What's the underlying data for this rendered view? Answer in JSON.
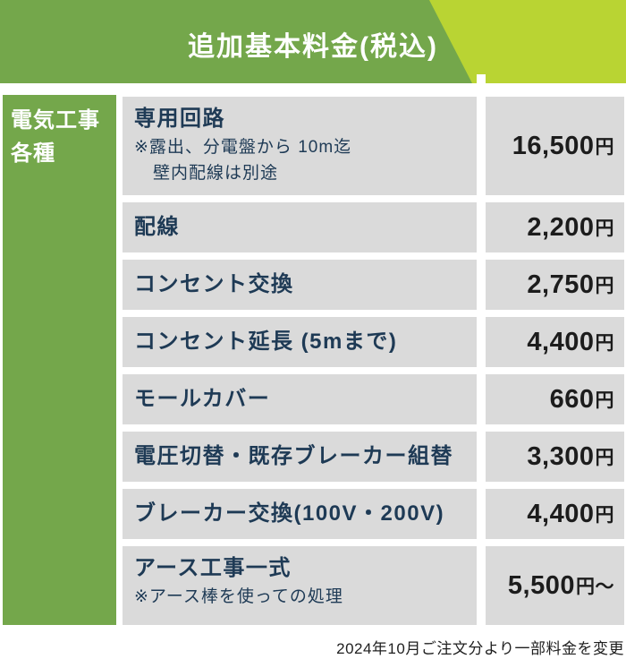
{
  "header": {
    "title": "追加基本料金(税込)"
  },
  "sidebar": {
    "label_line1": "電気工事",
    "label_line2": "各種"
  },
  "table": {
    "rows": [
      {
        "item": "専用回路",
        "notes": [
          "※露出、分電盤から 10m迄",
          "壁内配線は別途"
        ],
        "price": "16,500",
        "unit": "円"
      },
      {
        "item": "配線",
        "price": "2,200",
        "unit": "円"
      },
      {
        "item": "コンセント交換",
        "price": "2,750",
        "unit": "円"
      },
      {
        "item": "コンセント延長 (5mまで)",
        "price": "4,400",
        "unit": "円"
      },
      {
        "item": "モールカバー",
        "price": "660",
        "unit": "円"
      },
      {
        "item": "電圧切替・既存ブレーカー組替",
        "price": "3,300",
        "unit": "円"
      },
      {
        "item": "ブレーカー交換(100V・200V)",
        "price": "4,400",
        "unit": "円"
      },
      {
        "item": "アース工事一式",
        "notes": [
          "※アース棒を使っての処理"
        ],
        "price": "5,500",
        "unit": "円〜"
      }
    ]
  },
  "footer": {
    "note": "2024年10月ご注文分より一部料金を変更"
  },
  "colors": {
    "main_green": "#74a74b",
    "accent_yellow_green": "#b9d433",
    "row_gray": "#dadada",
    "item_text_navy": "#1e3a55",
    "price_text": "#1c1c1c",
    "title_text": "#ffffff"
  }
}
